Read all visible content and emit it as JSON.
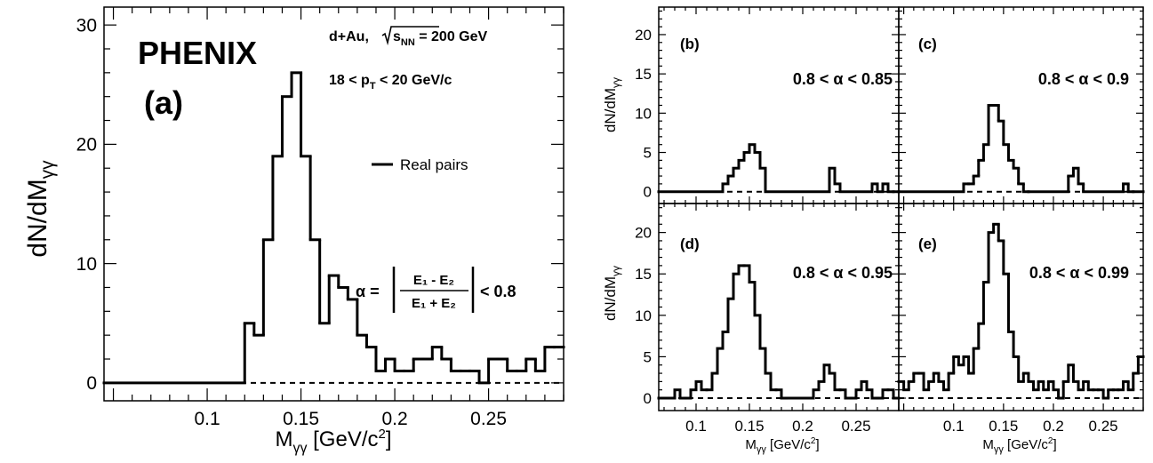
{
  "chart_data": [
    {
      "type": "histogram",
      "panel_label": "(a)",
      "experiment_label": "PHENIX",
      "system_label": "d+Au, √s_NN = 200 GeV",
      "system_text": {
        "pre": "d+Au, ",
        "sub": "NN",
        "post": " = 200 GeV"
      },
      "pt_text": {
        "pre": "18 < p",
        "sub": "T",
        "post": " < 20 GeV/c"
      },
      "legend": [
        "Real pairs"
      ],
      "alpha_cut_text": {
        "prefix": "α =",
        "num": "E₁ - E₂",
        "den": "E₁ + E₂",
        "suffix": "< 0.8"
      },
      "xlabel": "M_γγ [GeV/c²]",
      "ylabel": "dN/dM_γγ",
      "xlim": [
        0.045,
        0.29
      ],
      "ylim": [
        -1.5,
        31.5
      ],
      "xticks": [
        "0.1",
        "0.15",
        "0.2",
        "0.25"
      ],
      "xtick_values": [
        0.1,
        0.15,
        0.2,
        0.25
      ],
      "yticks": [
        "0",
        "10",
        "20",
        "30"
      ],
      "ytick_values": [
        0,
        10,
        20,
        30
      ],
      "bin_edges": [
        0.045,
        0.12,
        0.125,
        0.13,
        0.135,
        0.14,
        0.145,
        0.15,
        0.155,
        0.16,
        0.165,
        0.17,
        0.175,
        0.18,
        0.185,
        0.19,
        0.195,
        0.2,
        0.205,
        0.21,
        0.215,
        0.22,
        0.225,
        0.23,
        0.235,
        0.24,
        0.245,
        0.25,
        0.255,
        0.26,
        0.265,
        0.27,
        0.275,
        0.28,
        0.285,
        0.29
      ],
      "values": [
        0,
        5,
        4,
        12,
        19,
        24,
        26,
        19,
        12,
        5,
        9,
        8,
        7,
        4,
        3,
        1,
        2,
        1,
        1,
        2,
        2,
        3,
        2,
        1,
        1,
        1,
        0,
        2,
        2,
        1,
        1,
        2,
        1,
        3,
        3
      ],
      "background_dashed_at": 0
    },
    {
      "type": "histogram",
      "panel_label": "(b)",
      "alpha_text": "0.8 < α < 0.85",
      "ylabel": "dN/dM_γγ",
      "xlim": [
        0.065,
        0.29
      ],
      "ylim": [
        -1.5,
        23.5
      ],
      "yticks": [
        "0",
        "5",
        "10",
        "15",
        "20"
      ],
      "ytick_values": [
        0,
        5,
        10,
        15,
        20
      ],
      "bin_edges": [
        0.065,
        0.125,
        0.13,
        0.135,
        0.14,
        0.145,
        0.15,
        0.155,
        0.16,
        0.165,
        0.225,
        0.23,
        0.235,
        0.265,
        0.27,
        0.275,
        0.28,
        0.285,
        0.29
      ],
      "values": [
        0,
        1,
        2,
        3,
        4,
        5,
        6,
        5,
        3,
        0,
        3,
        1,
        0,
        1,
        0,
        1,
        0,
        0
      ],
      "background_dashed_at": 0
    },
    {
      "type": "histogram",
      "panel_label": "(c)",
      "alpha_text": "0.8 < α < 0.9",
      "xlim": [
        0.045,
        0.29
      ],
      "ylim": [
        -1.5,
        23.5
      ],
      "bin_edges": [
        0.045,
        0.11,
        0.115,
        0.12,
        0.125,
        0.13,
        0.135,
        0.14,
        0.145,
        0.15,
        0.155,
        0.16,
        0.165,
        0.17,
        0.175,
        0.215,
        0.22,
        0.225,
        0.23,
        0.27,
        0.275,
        0.28,
        0.29
      ],
      "values": [
        0,
        1,
        1,
        2,
        4,
        6,
        11,
        11,
        9,
        6,
        4,
        3,
        1,
        0,
        0,
        2,
        3,
        1,
        0,
        1,
        0,
        0
      ],
      "background_dashed_at": 0
    },
    {
      "type": "histogram",
      "panel_label": "(d)",
      "alpha_text": "0.8 < α < 0.95",
      "ylabel": "dN/dM_γγ",
      "xlabel": "M_γγ [GeV/c²]",
      "xlim": [
        0.065,
        0.29
      ],
      "ylim": [
        -1.5,
        23.5
      ],
      "xticks": [
        "0.1",
        "0.15",
        "0.2",
        "0.25"
      ],
      "xtick_values": [
        0.1,
        0.15,
        0.2,
        0.25
      ],
      "yticks": [
        "0",
        "5",
        "10",
        "15",
        "20"
      ],
      "ytick_values": [
        0,
        5,
        10,
        15,
        20
      ],
      "bin_edges": [
        0.065,
        0.08,
        0.085,
        0.09,
        0.095,
        0.1,
        0.105,
        0.11,
        0.115,
        0.12,
        0.125,
        0.13,
        0.135,
        0.14,
        0.145,
        0.15,
        0.155,
        0.16,
        0.165,
        0.17,
        0.175,
        0.18,
        0.185,
        0.21,
        0.215,
        0.22,
        0.225,
        0.23,
        0.235,
        0.24,
        0.245,
        0.25,
        0.255,
        0.26,
        0.265,
        0.27,
        0.275,
        0.28,
        0.285,
        0.29
      ],
      "values": [
        0,
        1,
        0,
        0,
        1,
        2,
        1,
        1,
        3,
        6,
        8,
        12,
        15,
        16,
        16,
        14,
        10,
        6,
        3,
        1,
        1,
        0,
        0,
        1,
        2,
        4,
        3,
        1,
        1,
        0,
        0,
        1,
        2,
        1,
        0,
        0,
        1,
        1,
        0
      ],
      "background_dashed_at": 0
    },
    {
      "type": "histogram",
      "panel_label": "(e)",
      "alpha_text": "0.8 < α < 0.99",
      "xlabel": "M_γγ [GeV/c²]",
      "xlim": [
        0.045,
        0.29
      ],
      "ylim": [
        -1.5,
        23.5
      ],
      "xticks": [
        "0.1",
        "0.15",
        "0.2",
        "0.25"
      ],
      "xtick_values": [
        0.1,
        0.15,
        0.2,
        0.25
      ],
      "bin_edges": [
        0.045,
        0.05,
        0.055,
        0.06,
        0.065,
        0.07,
        0.075,
        0.08,
        0.085,
        0.09,
        0.095,
        0.1,
        0.105,
        0.11,
        0.115,
        0.12,
        0.125,
        0.13,
        0.135,
        0.14,
        0.145,
        0.15,
        0.155,
        0.16,
        0.165,
        0.17,
        0.175,
        0.18,
        0.185,
        0.19,
        0.195,
        0.2,
        0.205,
        0.21,
        0.215,
        0.22,
        0.225,
        0.23,
        0.235,
        0.24,
        0.245,
        0.25,
        0.255,
        0.26,
        0.265,
        0.27,
        0.275,
        0.28,
        0.285,
        0.29
      ],
      "values": [
        2,
        1,
        2,
        3,
        3,
        1,
        2,
        3,
        2,
        1,
        3,
        5,
        4,
        5,
        3,
        6,
        9,
        14,
        20,
        21,
        19,
        15,
        8,
        5,
        2,
        3,
        2,
        1,
        2,
        1,
        2,
        1,
        0,
        2,
        4,
        2,
        1,
        2,
        1,
        1,
        1,
        0,
        1,
        1,
        1,
        2,
        1,
        3,
        5
      ],
      "background_dashed_at": 0
    }
  ]
}
